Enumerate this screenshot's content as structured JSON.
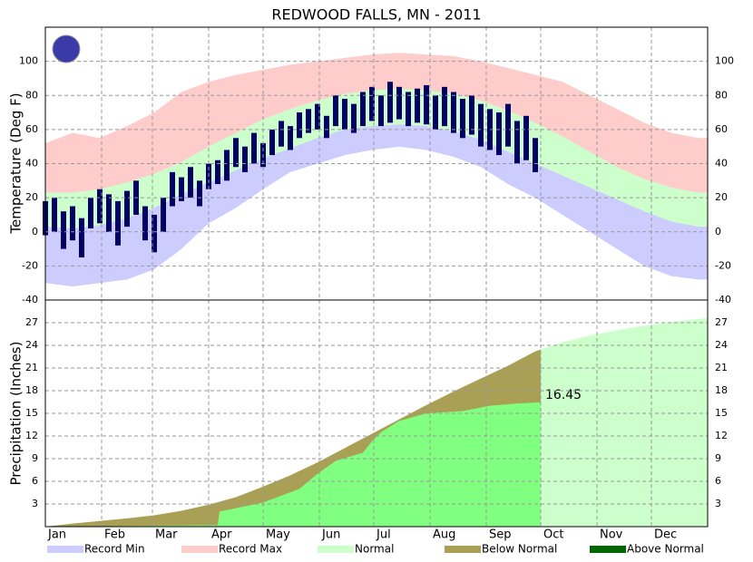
{
  "chart_data": [
    {
      "type": "band",
      "title": "REDWOOD FALLS, MN - 2011",
      "ylabel": "Temperature (Deg F)",
      "x": [
        0,
        15,
        30,
        45,
        60,
        75,
        90,
        105,
        120,
        135,
        150,
        165,
        180,
        195,
        210,
        225,
        240,
        255,
        270,
        285,
        300,
        315,
        330,
        345,
        360,
        365
      ],
      "record_max": [
        52,
        58,
        55,
        62,
        70,
        82,
        88,
        92,
        95,
        98,
        100,
        102,
        104,
        105,
        104,
        103,
        100,
        96,
        92,
        88,
        80,
        72,
        64,
        58,
        55,
        55
      ],
      "normal_high": [
        23,
        23,
        25,
        29,
        34,
        41,
        50,
        58,
        66,
        72,
        77,
        81,
        83,
        84,
        83,
        81,
        77,
        71,
        64,
        56,
        47,
        38,
        31,
        26,
        23,
        23
      ],
      "normal_low": [
        3,
        2,
        4,
        8,
        14,
        22,
        29,
        36,
        43,
        49,
        55,
        60,
        62,
        63,
        62,
        59,
        54,
        47,
        40,
        33,
        26,
        19,
        12,
        6,
        3,
        3
      ],
      "record_min": [
        -30,
        -32,
        -30,
        -28,
        -22,
        -10,
        5,
        14,
        25,
        35,
        40,
        45,
        48,
        50,
        48,
        44,
        38,
        28,
        20,
        10,
        0,
        -10,
        -20,
        -26,
        -28,
        -28
      ],
      "obs_x": [
        0,
        5,
        10,
        15,
        20,
        25,
        30,
        35,
        40,
        45,
        50,
        55,
        60,
        65,
        70,
        75,
        80,
        85,
        90,
        95,
        100,
        105,
        110,
        115,
        120,
        125,
        130,
        135,
        140,
        145,
        150,
        155,
        160,
        165,
        170,
        175,
        180,
        185,
        190,
        195,
        200,
        205,
        210,
        215,
        220,
        225,
        230,
        235,
        240,
        245,
        250,
        255,
        260,
        265,
        270
      ],
      "obs_high": [
        18,
        20,
        12,
        15,
        8,
        20,
        25,
        22,
        18,
        24,
        30,
        15,
        10,
        20,
        35,
        32,
        38,
        30,
        40,
        42,
        48,
        55,
        50,
        58,
        52,
        60,
        65,
        62,
        70,
        72,
        75,
        68,
        80,
        78,
        75,
        82,
        85,
        80,
        88,
        85,
        82,
        84,
        86,
        80,
        85,
        82,
        78,
        80,
        75,
        72,
        70,
        75,
        65,
        68,
        55
      ],
      "obs_low": [
        -2,
        0,
        -10,
        -5,
        -15,
        2,
        5,
        0,
        -8,
        3,
        10,
        -5,
        -12,
        0,
        15,
        18,
        20,
        15,
        25,
        28,
        30,
        38,
        35,
        40,
        38,
        45,
        50,
        48,
        55,
        58,
        60,
        55,
        62,
        60,
        58,
        62,
        65,
        62,
        64,
        66,
        62,
        64,
        63,
        60,
        62,
        58,
        55,
        57,
        50,
        48,
        45,
        50,
        40,
        42,
        35
      ],
      "obs_color": "#000066",
      "xlim": [
        0,
        365
      ],
      "ylim": [
        -40,
        120
      ],
      "yticks": [
        -40,
        -20,
        0,
        20,
        40,
        60,
        80,
        100
      ],
      "grid": true
    },
    {
      "type": "cumulative",
      "ylabel": "Precipitation (Inches)",
      "x": [
        0,
        15,
        30,
        45,
        60,
        75,
        90,
        105,
        120,
        135,
        150,
        165,
        180,
        195,
        210,
        225,
        240,
        255,
        270,
        285,
        300,
        315,
        330,
        345,
        360,
        365
      ],
      "normal": [
        0,
        0.4,
        0.75,
        1.1,
        1.5,
        2.1,
        2.9,
        3.9,
        5.3,
        6.8,
        8.5,
        10.4,
        12.3,
        14.2,
        16.1,
        17.9,
        19.6,
        21.3,
        23.2,
        24.4,
        25.3,
        26.0,
        26.6,
        27.1,
        27.5,
        27.6
      ],
      "obs_x": [
        0,
        95,
        96,
        120,
        140,
        150,
        160,
        175,
        180,
        185,
        195,
        210,
        230,
        245,
        260,
        273
      ],
      "observed": [
        0,
        0.2,
        2,
        3.2,
        5,
        7,
        8.7,
        9.8,
        11.3,
        12.5,
        14,
        15,
        15.3,
        16,
        16.3,
        16.45
      ],
      "observed_color": "#80ff80",
      "xlim": [
        0,
        365
      ],
      "ylim": [
        0,
        30
      ],
      "yticks": [
        3,
        6,
        9,
        12,
        15,
        18,
        21,
        24,
        27
      ],
      "xticks": [
        {
          "value": 0,
          "label": "Jan"
        },
        {
          "value": 31,
          "label": "Feb"
        },
        {
          "value": 59,
          "label": "Mar"
        },
        {
          "value": 90,
          "label": "Apr"
        },
        {
          "value": 120,
          "label": "May"
        },
        {
          "value": 151,
          "label": "Jun"
        },
        {
          "value": 181,
          "label": "Jul"
        },
        {
          "value": 212,
          "label": "Aug"
        },
        {
          "value": 243,
          "label": "Sep"
        },
        {
          "value": 273,
          "label": "Oct"
        },
        {
          "value": 304,
          "label": "Nov"
        },
        {
          "value": 334,
          "label": "Dec"
        }
      ],
      "grid": true
    }
  ],
  "legend": [
    {
      "label": "Record Min",
      "color": "#ccccff"
    },
    {
      "label": "Record Max",
      "color": "#ffcccc"
    },
    {
      "label": "Normal",
      "color": "#ccffcc"
    },
    {
      "label": "Below Normal",
      "color": "#aaa055"
    },
    {
      "label": "Above Normal",
      "color": "#006600"
    }
  ]
}
